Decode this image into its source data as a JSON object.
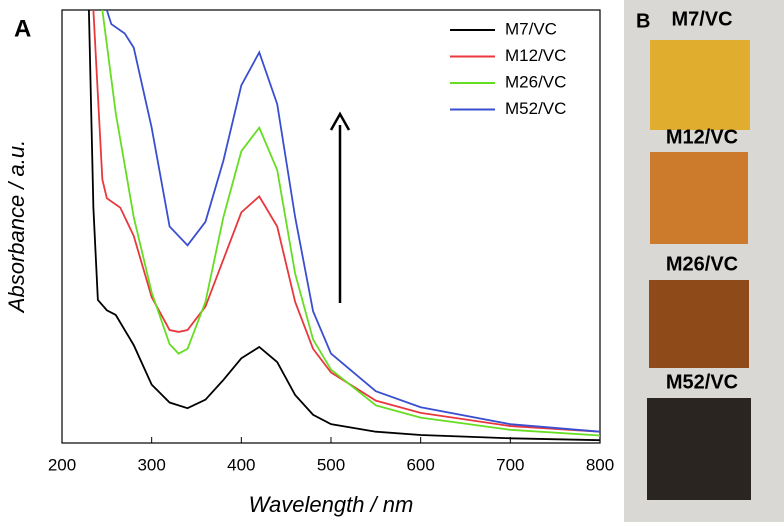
{
  "chart_data": {
    "type": "line",
    "panel_label": "A",
    "x_label": "Wavelength / nm",
    "y_label": "Absorbance / a.u.",
    "xlim": [
      200,
      800
    ],
    "xticks": [
      200,
      300,
      400,
      500,
      600,
      700,
      800
    ],
    "ylim": [
      0,
      4.6
    ],
    "series": [
      {
        "name": "M7/VC",
        "color": "#000000",
        "x": [
          230,
          235,
          240,
          250,
          260,
          280,
          300,
          320,
          340,
          360,
          380,
          400,
          420,
          440,
          460,
          480,
          500,
          550,
          600,
          700,
          800
        ],
        "values": [
          4.6,
          2.5,
          1.52,
          1.41,
          1.36,
          1.04,
          0.62,
          0.43,
          0.37,
          0.46,
          0.67,
          0.9,
          1.02,
          0.86,
          0.51,
          0.3,
          0.2,
          0.12,
          0.085,
          0.05,
          0.03
        ]
      },
      {
        "name": "M12/VC",
        "color": "#e8383d",
        "x": [
          235,
          245,
          250,
          265,
          280,
          300,
          320,
          330,
          340,
          360,
          380,
          400,
          420,
          440,
          460,
          480,
          500,
          550,
          600,
          700,
          800
        ],
        "values": [
          4.6,
          2.8,
          2.6,
          2.5,
          2.2,
          1.55,
          1.2,
          1.18,
          1.2,
          1.45,
          1.95,
          2.45,
          2.62,
          2.3,
          1.5,
          1.0,
          0.75,
          0.45,
          0.32,
          0.18,
          0.12
        ]
      },
      {
        "name": "M26/VC",
        "color": "#66dd22",
        "x": [
          245,
          260,
          280,
          300,
          320,
          330,
          340,
          360,
          380,
          400,
          420,
          440,
          460,
          480,
          500,
          550,
          600,
          700,
          800
        ],
        "values": [
          4.6,
          3.5,
          2.4,
          1.6,
          1.05,
          0.95,
          1.0,
          1.5,
          2.4,
          3.1,
          3.35,
          2.9,
          1.8,
          1.1,
          0.78,
          0.4,
          0.27,
          0.14,
          0.08
        ]
      },
      {
        "name": "M52/VC",
        "color": "#3a4fd0",
        "x": [
          250,
          255,
          270,
          280,
          300,
          320,
          340,
          360,
          380,
          400,
          420,
          440,
          460,
          480,
          500,
          550,
          600,
          700,
          800
        ],
        "values": [
          4.6,
          4.45,
          4.35,
          4.2,
          3.35,
          2.3,
          2.1,
          2.35,
          3.0,
          3.8,
          4.15,
          3.6,
          2.4,
          1.4,
          0.95,
          0.55,
          0.38,
          0.2,
          0.12
        ]
      }
    ]
  },
  "photo_panel": {
    "label": "B",
    "samples": [
      "M7/VC",
      "M12/VC",
      "M26/VC",
      "M52/VC"
    ]
  }
}
